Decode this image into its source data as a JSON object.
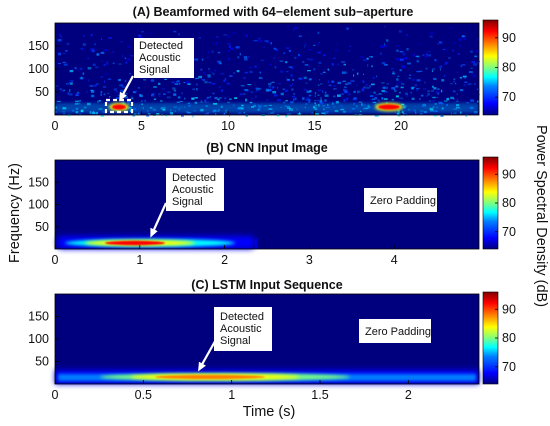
{
  "shared": {
    "ylabel": "Frequency (Hz)",
    "xlabel": "Time (s)",
    "colorbar_label": "Power Spectral Density (dB)",
    "colormap": [
      "#00007f",
      "#0000ff",
      "#007fff",
      "#00ffff",
      "#7fff7f",
      "#ffff00",
      "#ff7f00",
      "#ff0000",
      "#7f0000"
    ]
  },
  "chart_data": [
    {
      "type": "heatmap",
      "title": "(A) Beamformed with 64−element sub−aperture",
      "x_ticks": [
        "0",
        "5",
        "10",
        "15",
        "20"
      ],
      "x_tick_values": [
        0,
        5,
        10,
        15,
        20
      ],
      "xlim": [
        0,
        24.5
      ],
      "y_ticks": [
        "50",
        "100",
        "150"
      ],
      "y_tick_values": [
        50,
        100,
        150
      ],
      "ylim": [
        0,
        200
      ],
      "colorbar": {
        "ticks": [
          "70",
          "80",
          "90"
        ],
        "values": [
          70,
          80,
          90
        ],
        "clim": [
          64,
          96
        ]
      },
      "annotations": [
        {
          "text": "Detected Acoustic Signal",
          "lines": [
            "Detected",
            "Acoustic",
            "Signal"
          ],
          "x": 4.1,
          "y": 135
        }
      ],
      "grid": false
    },
    {
      "type": "heatmap",
      "title": "(B) CNN Input Image",
      "x_ticks": [
        "0",
        "1",
        "2",
        "3",
        "4"
      ],
      "x_tick_values": [
        0,
        1,
        2,
        3,
        4
      ],
      "xlim": [
        0,
        5
      ],
      "y_ticks": [
        "50",
        "100",
        "150"
      ],
      "y_tick_values": [
        50,
        100,
        150
      ],
      "ylim": [
        0,
        200
      ],
      "colorbar": {
        "ticks": [
          "70",
          "80",
          "90"
        ],
        "values": [
          70,
          80,
          90
        ],
        "clim": [
          64,
          96
        ]
      },
      "annotations": [
        {
          "text": "Detected Acoustic Signal",
          "lines": [
            "Detected",
            "Acoustic",
            "Signal"
          ],
          "x": 1.55,
          "y": 140
        },
        {
          "text": "Zero Padding",
          "lines": [
            "Zero Padding"
          ],
          "x": 4.15,
          "y": 112
        }
      ],
      "grid": false
    },
    {
      "type": "heatmap",
      "title": "(C) LSTM Input Sequence",
      "x_ticks": [
        "0",
        "0.5",
        "1",
        "1.5",
        "2"
      ],
      "x_tick_values": [
        0,
        0.5,
        1,
        1.5,
        2
      ],
      "xlim": [
        0,
        2.4
      ],
      "y_ticks": [
        "50",
        "100",
        "150"
      ],
      "y_tick_values": [
        50,
        100,
        150
      ],
      "ylim": [
        0,
        200
      ],
      "colorbar": {
        "ticks": [
          "70",
          "80",
          "90"
        ],
        "values": [
          70,
          80,
          90
        ],
        "clim": [
          64,
          96
        ]
      },
      "annotations": [
        {
          "text": "Detected Acoustic Signal",
          "lines": [
            "Detected",
            "Acoustic",
            "Signal"
          ],
          "x": 0.9,
          "y": 150
        },
        {
          "text": "Zero Padding",
          "lines": [
            "Zero Padding"
          ],
          "x": 2.0,
          "y": 120
        }
      ],
      "grid": false
    }
  ]
}
